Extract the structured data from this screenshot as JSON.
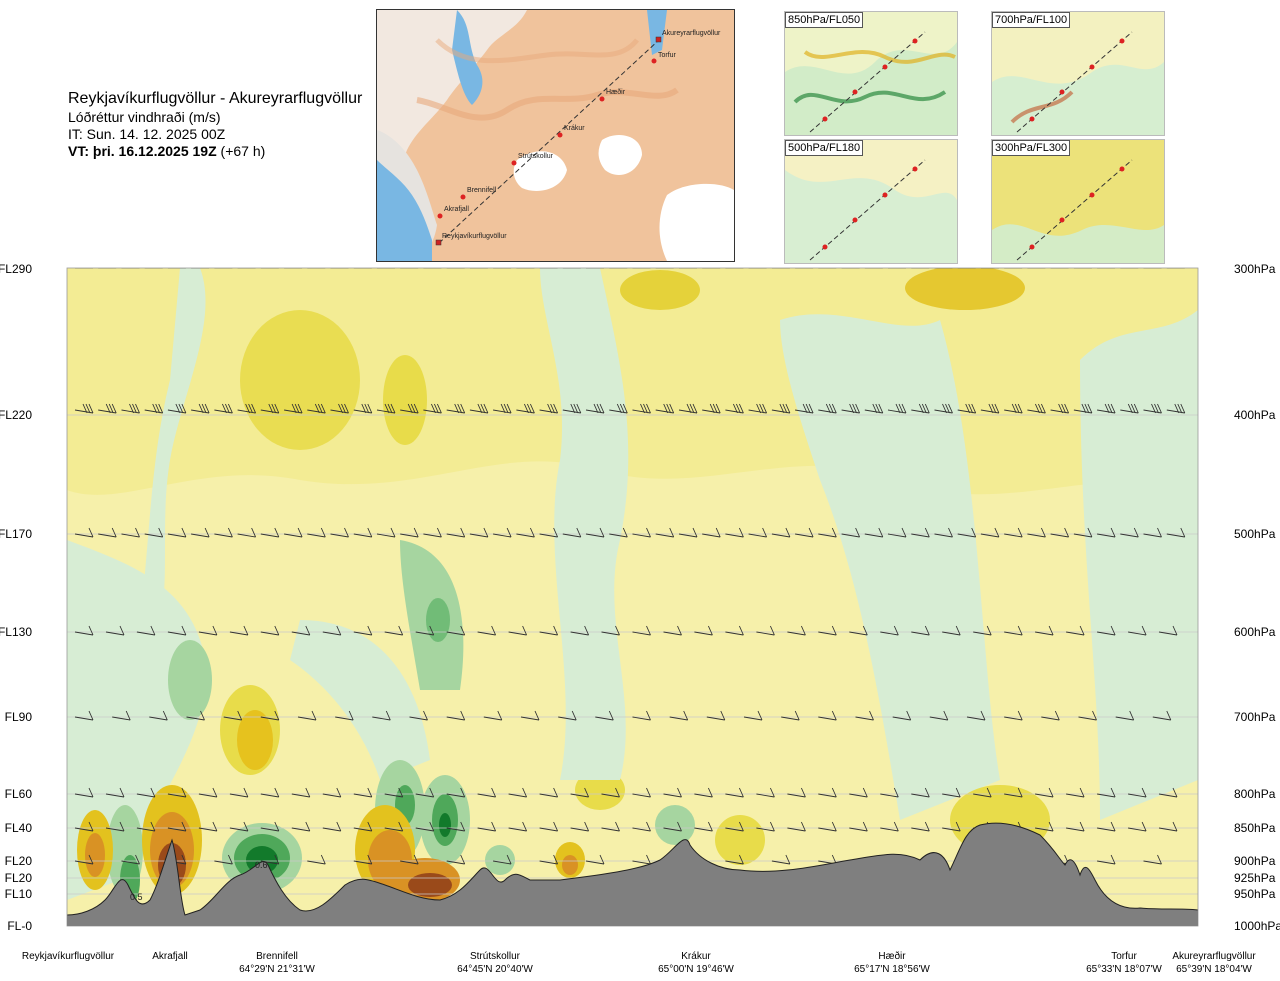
{
  "header": {
    "route": "Reykjavíkurflugvöllur - Akureyrarflugvöllur",
    "variable": "Lóðréttur vindhraði (m/s)",
    "issue_time": "IT: Sun. 14. 12. 2025 00Z",
    "valid_time_bold": "VT: þri. 16.12.2025 19Z",
    "valid_time_offset": "(+67 h)"
  },
  "map": {
    "points": [
      {
        "name": "Akureyrarflugvöllur"
      },
      {
        "name": "Torfur"
      },
      {
        "name": "Hæðir"
      },
      {
        "name": "Krákur"
      },
      {
        "name": "Strútskollur"
      },
      {
        "name": "Brennifell"
      },
      {
        "name": "Akrafjall"
      },
      {
        "name": "Reykjavíkurflugvöllur"
      }
    ]
  },
  "panels": [
    {
      "label": "850hPa/FL050"
    },
    {
      "label": "700hPa/FL100"
    },
    {
      "label": "500hPa/FL180"
    },
    {
      "label": "300hPa/FL300"
    }
  ],
  "chart_data": {
    "type": "heatmap",
    "title": "Lóðréttur vindhraði (m/s)",
    "y_left_levels": [
      "FL290",
      "FL220",
      "FL170",
      "FL130",
      "FL90",
      "FL60",
      "FL40",
      "FL20",
      "FL20",
      "FL10",
      "FL-0"
    ],
    "y_right_levels": [
      "300hPa",
      "400hPa",
      "500hPa",
      "600hPa",
      "700hPa",
      "800hPa",
      "850hPa",
      "900hPa",
      "925hPa",
      "950hPa",
      "1000hPa"
    ],
    "contour_labels": [
      "0.5",
      "0.6"
    ],
    "locations": [
      {
        "name": "Reykjavíkurflugvöllur",
        "coord": ""
      },
      {
        "name": "Akrafjall",
        "coord": ""
      },
      {
        "name": "Brennifell",
        "coord": "64°29'N 21°31'W"
      },
      {
        "name": "Strútskollur",
        "coord": "64°45'N 20°40'W"
      },
      {
        "name": "Krákur",
        "coord": "65°00'N 19°46'W"
      },
      {
        "name": "Hæðir",
        "coord": "65°17'N 18°56'W"
      },
      {
        "name": "Torfur",
        "coord": "65°33'N 18°07'W"
      },
      {
        "name": "Akureyrarflugvöllur",
        "coord": "65°39'N 18°04'W"
      }
    ],
    "colors": {
      "sink_light": "#f5efa6",
      "sink_mid": "#ece36a",
      "sink_strong": "#e3c21e",
      "sink_orange": "#d99224",
      "sink_brown": "#9a4a1a",
      "rise_light": "#d7edd4",
      "rise_mid": "#a6d5a0",
      "rise_strong": "#4fa85a",
      "rise_darkest": "#127a2b",
      "terrain": "#7f7f7f"
    }
  }
}
